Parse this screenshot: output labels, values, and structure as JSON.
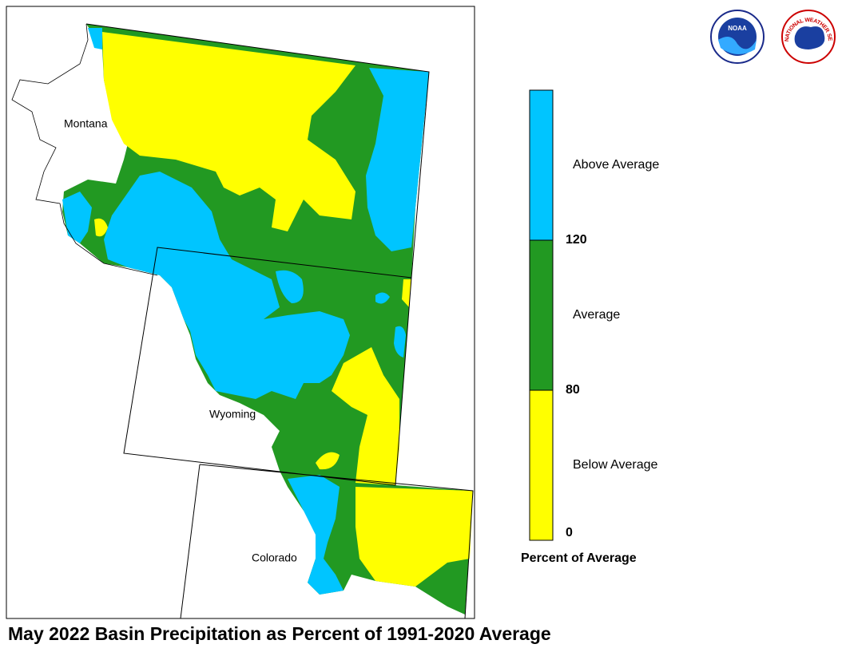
{
  "title": "May 2022 Basin Precipitation as Percent of 1991-2020 Average",
  "map": {
    "states": [
      "Montana",
      "Wyoming",
      "Colorado"
    ]
  },
  "logos": {
    "noaa": "NOAA",
    "nws": "NATIONAL WEATHER SERVICE"
  },
  "legend": {
    "title": "Percent of Average",
    "items": [
      {
        "label": "Above Average",
        "color": "#00c5ff"
      },
      {
        "label": "Average",
        "color": "#229922"
      },
      {
        "label": "Below Average",
        "color": "#ffff00"
      }
    ],
    "breaks": [
      120,
      80,
      0
    ]
  }
}
